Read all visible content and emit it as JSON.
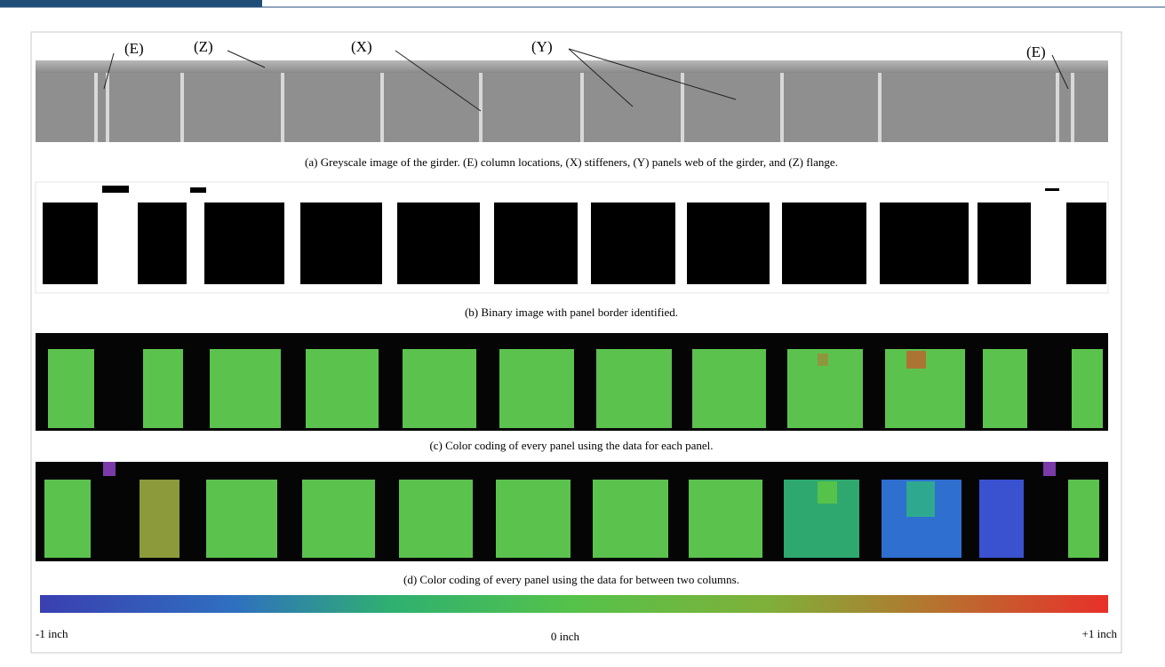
{
  "figure": {
    "callouts": [
      "(E)",
      "(Z)",
      "(X)",
      "(Y)",
      "(E)"
    ],
    "captions": [
      "(a) Greyscale image of the girder. (E) column locations, (X) stiffeners, (Y) panels web of the girder, and (Z) flange.",
      "(b) Binary image with panel border identified.",
      "(c) Color coding of every panel using the data for each panel.",
      "(d) Color coding of every panel using the data for between two columns."
    ],
    "colorbar": {
      "min_label": "-1 inch",
      "mid_label": "0 inch",
      "max_label": "+1 inch"
    }
  }
}
